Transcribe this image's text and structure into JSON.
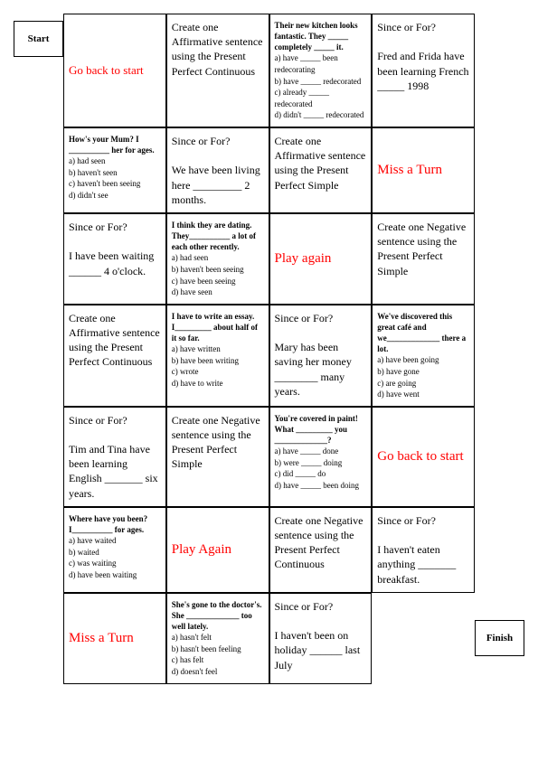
{
  "start": "Start",
  "finish": "Finish",
  "cells": {
    "r1c2": "Go back to start",
    "r1c3": "Create one Affirmative  sentence using the Present Perfect Continuous",
    "r1c4_title": "Their new kitchen looks fantastic. They _____ completely _____ it.",
    "r1c4_a": "a) have _____ been redecorating",
    "r1c4_b": "b) have _____ redecorated",
    "r1c4_c": "c) already _____ redecorated",
    "r1c4_d": "d) didn't _____ redecorated",
    "r1c5": "Since or For?\n\nFred and Frida have been learning French _____ 1998",
    "r2c2_title": "How's your Mum? I __________ her for ages.",
    "r2c2_a": "a) had seen",
    "r2c2_b": "b) haven't seen",
    "r2c2_c": "c) haven't been seeing",
    "r2c2_d": "d) didn't see",
    "r2c3": "Since or For?\n\nWe have been living here _________ 2 months.",
    "r2c4": "Create one Affirmative  sentence using the Present Perfect Simple",
    "r2c5": "Miss a Turn",
    "r3c2": "Since or For?\n\nI have been waiting ______ 4 o'clock.",
    "r3c3_title": "I think they are dating. They__________ a lot of each other recently.",
    "r3c3_a": "a) had seen",
    "r3c3_b": "b) haven't been seeing",
    "r3c3_c": "c) have been seeing",
    "r3c3_d": "d) have seen",
    "r3c4": "Play again",
    "r3c5": "Create one Negative sentence using the Present Perfect Simple",
    "r4c2": "Create one Affirmative  sentence using the Present Perfect Continuous",
    "r4c3_title": "I have to write an essay. I_________ about half of it so far.",
    "r4c3_a": "a) have written",
    "r4c3_b": "b) have been writing",
    "r4c3_c": "c) wrote",
    "r4c3_d": "d) have to write",
    "r4c4": "Since or For?\n\nMary has been saving her money ________ many years.",
    "r4c5_title": "We've discovered this great café and we_____________ there a lot.",
    "r4c5_a": "a) have been going",
    "r4c5_b": "b) have gone",
    "r4c5_c": "c) are going",
    "r4c5_d": "d) have went",
    "r5c2": "Since or For?\n\nTim and Tina have been learning English _______ six years.",
    "r5c3": "Create one Negative sentence using the Present Perfect Simple",
    "r5c4_title": "You're covered in paint! What _________ you _____________?",
    "r5c4_a": "a) have _____ done",
    "r5c4_b": "b) were _____ doing",
    "r5c4_c": "c) did _____ do",
    "r5c4_d": "d) have _____ been doing",
    "r5c5": "Go back to start",
    "r6c2_title": "Where have you been? I__________ for ages.",
    "r6c2_a": "a) have waited",
    "r6c2_b": "b) waited",
    "r6c2_c": "c) was waiting",
    "r6c2_d": "d) have been waiting",
    "r6c3": "Play Again",
    "r6c4": "Create one Negative sentence using the Present Perfect Continuous",
    "r6c5": "Since or For?\n\nI haven't eaten anything _______ breakfast.",
    "r7c2": "Miss a Turn",
    "r7c3_title": "She's gone to the doctor's. She _____________ too well lately.",
    "r7c3_a": "a) hasn't felt",
    "r7c3_b": "b) hasn't been feeling",
    "r7c3_c": "c) has felt",
    "r7c3_d": "d) doesn't feel",
    "r7c4": "Since or For?\n\nI haven't been on holiday ______ last July"
  }
}
